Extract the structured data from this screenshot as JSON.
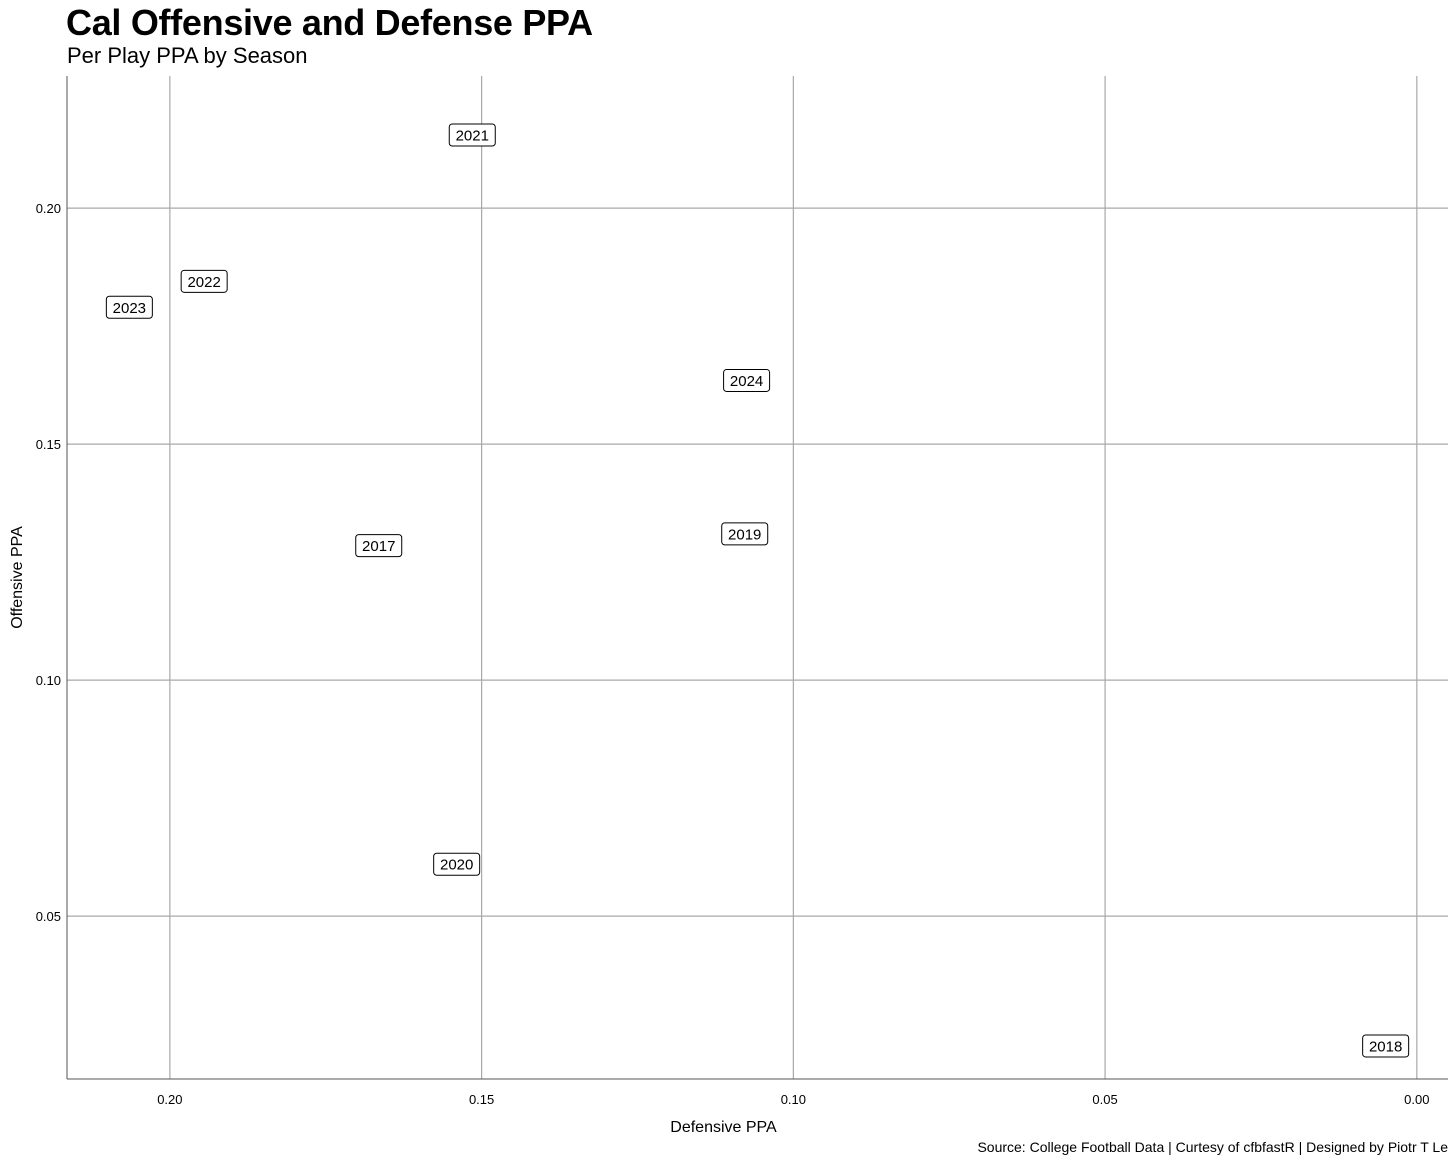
{
  "chart_data": {
    "type": "scatter",
    "title": "Cal Offensive and Defense PPA",
    "subtitle": "Per Play PPA by Season",
    "caption": "Source: College Football Data | Curtesy of cfbfastR | Designed by Piotr T Le",
    "xlabel": "Defensive PPA",
    "ylabel": "Offensive PPA",
    "x_reversed": true,
    "xlim": [
      0.2165,
      -0.005
    ],
    "ylim": [
      0.0155,
      0.228
    ],
    "x_ticks": [
      0.2,
      0.15,
      0.1,
      0.05,
      0.0
    ],
    "x_tick_labels": [
      "0.20",
      "0.15",
      "0.10",
      "0.05",
      "0.00"
    ],
    "y_ticks": [
      0.05,
      0.1,
      0.15,
      0.2
    ],
    "y_tick_labels": [
      "0.05",
      "0.10",
      "0.15",
      "0.20"
    ],
    "grid": true,
    "points": [
      {
        "label": "2021",
        "x": 0.1515,
        "y": 0.2155
      },
      {
        "label": "2022",
        "x": 0.1945,
        "y": 0.1845
      },
      {
        "label": "2023",
        "x": 0.2065,
        "y": 0.179
      },
      {
        "label": "2024",
        "x": 0.1075,
        "y": 0.1635
      },
      {
        "label": "2019",
        "x": 0.1078,
        "y": 0.131
      },
      {
        "label": "2017",
        "x": 0.1665,
        "y": 0.1285
      },
      {
        "label": "2020",
        "x": 0.154,
        "y": 0.061
      },
      {
        "label": "2018",
        "x": 0.005,
        "y": 0.0225
      }
    ]
  }
}
